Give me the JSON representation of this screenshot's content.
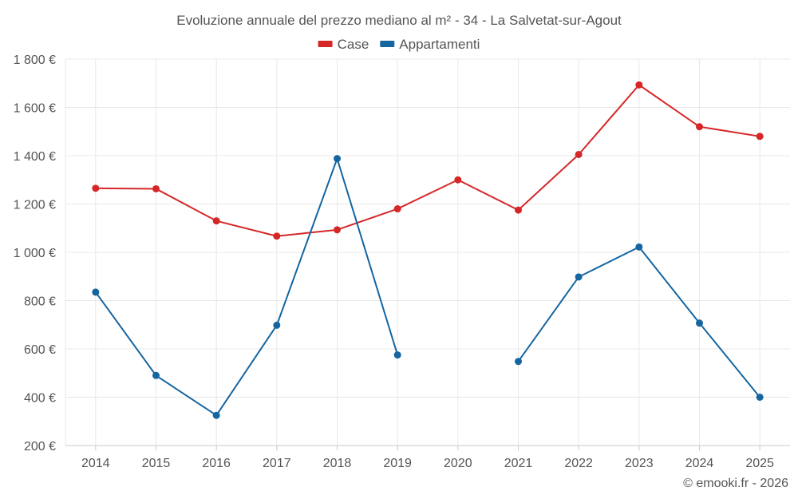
{
  "chart_data": {
    "type": "line",
    "title": "Evoluzione annuale del prezzo mediano al m² - 34 - La Salvetat-sur-Agout",
    "categories": [
      "2014",
      "2015",
      "2016",
      "2017",
      "2018",
      "2019",
      "2020",
      "2021",
      "2022",
      "2023",
      "2024",
      "2025"
    ],
    "series": [
      {
        "name": "Case",
        "color": "#d62728",
        "values": [
          1265,
          1263,
          1130,
          1067,
          1093,
          1180,
          1300,
          1175,
          1405,
          1693,
          1520,
          1480
        ]
      },
      {
        "name": "Appartamenti",
        "color": "#1565a0",
        "values": [
          835,
          490,
          325,
          698,
          1388,
          575,
          null,
          548,
          898,
          1022,
          707,
          400
        ]
      }
    ],
    "ylim": [
      200,
      1800
    ],
    "y_ticks": [
      {
        "value": 200,
        "label": "200 €"
      },
      {
        "value": 400,
        "label": "400 €"
      },
      {
        "value": 600,
        "label": "600 €"
      },
      {
        "value": 800,
        "label": "800 €"
      },
      {
        "value": 1000,
        "label": "1 000 €"
      },
      {
        "value": 1200,
        "label": "1 200 €"
      },
      {
        "value": 1400,
        "label": "1 400 €"
      },
      {
        "value": 1600,
        "label": "1 600 €"
      },
      {
        "value": 1800,
        "label": "1 800 €"
      }
    ],
    "xlabel": "",
    "ylabel": "",
    "grid": true,
    "legend_position": "top-center"
  },
  "footer": {
    "credit": "© emooki.fr - 2026"
  },
  "colors": {
    "text": "#555555",
    "grid": "#e8e8e8",
    "axis": "#c8c8c8"
  }
}
